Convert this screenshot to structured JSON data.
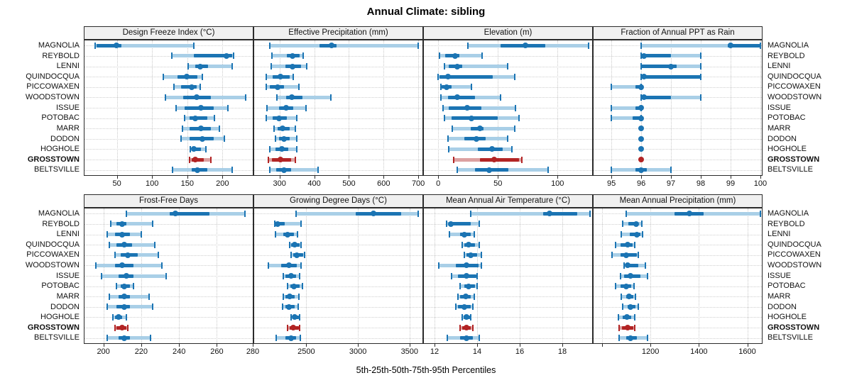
{
  "title": "Annual Climate: sibling",
  "footer_label": "5th-25th-50th-75th-95th Percentiles",
  "colors": {
    "series_main": "#1b74b3",
    "series_band": "#a9cfe7",
    "highlight_main": "#b22424",
    "highlight_band": "#dca1a1",
    "header_bg": "#f0f0f0",
    "panel_border": "#2b2b2b",
    "grid": "#c9c9c9",
    "text": "#111111"
  },
  "chart_data": {
    "type": "trellis-percentile-dotplot",
    "percentiles_shown": [
      5,
      25,
      50,
      75,
      95
    ],
    "legend_note": "thin light band = 5th-95th, thick bar = 25th-75th, dot = 50th",
    "categories": [
      "MAGNOLIA",
      "REYBOLD",
      "LENNI",
      "QUINDOCQUA",
      "PICCOWAXEN",
      "WOODSTOWN",
      "ISSUE",
      "POTOBAC",
      "MARR",
      "DODON",
      "HOGHOLE",
      "GROSSTOWN",
      "BELTSVILLE"
    ],
    "highlight_category": "GROSSTOWN",
    "panels": [
      {
        "title": "Design Freeze Index (°C)",
        "xlim": [
          4,
          243
        ],
        "ticks": [
          {
            "v": 50,
            "label": "50"
          },
          {
            "v": 100,
            "label": "100"
          },
          {
            "v": 150,
            "label": "150"
          },
          {
            "v": 200,
            "label": "200"
          }
        ],
        "series": [
          [
            19,
            21,
            49,
            56,
            159
          ],
          [
            128,
            159,
            206,
            214,
            216
          ],
          [
            151,
            161,
            168,
            179,
            214
          ],
          [
            116,
            136,
            149,
            164,
            171
          ],
          [
            131,
            141,
            156,
            163,
            168
          ],
          [
            119,
            144,
            163,
            184,
            233
          ],
          [
            134,
            146,
            169,
            188,
            208
          ],
          [
            146,
            153,
            161,
            178,
            189
          ],
          [
            143,
            153,
            169,
            184,
            196
          ],
          [
            141,
            153,
            171,
            188,
            203
          ],
          [
            154,
            156,
            159,
            169,
            176
          ],
          [
            153,
            156,
            161,
            173,
            184
          ],
          [
            129,
            156,
            164,
            178,
            214
          ]
        ]
      },
      {
        "title": "Effective Precipitation (mm)",
        "xlim": [
          227,
          712
        ],
        "ticks": [
          {
            "v": 300,
            "label": "300"
          },
          {
            "v": 400,
            "label": "400"
          },
          {
            "v": 500,
            "label": "500"
          },
          {
            "v": 600,
            "label": "600"
          },
          {
            "v": 700,
            "label": "700"
          }
        ],
        "series": [
          [
            273,
            415,
            450,
            465,
            700
          ],
          [
            278,
            322,
            337,
            357,
            368
          ],
          [
            276,
            318,
            337,
            363,
            378
          ],
          [
            262,
            281,
            302,
            329,
            339
          ],
          [
            261,
            272,
            295,
            312,
            355
          ],
          [
            292,
            319,
            336,
            367,
            448
          ],
          [
            264,
            299,
            319,
            339,
            377
          ],
          [
            262,
            281,
            299,
            322,
            350
          ],
          [
            285,
            295,
            309,
            329,
            346
          ],
          [
            288,
            299,
            312,
            329,
            350
          ],
          [
            271,
            288,
            306,
            326,
            350
          ],
          [
            268,
            278,
            302,
            333,
            346
          ],
          [
            271,
            290,
            312,
            333,
            411
          ]
        ]
      },
      {
        "title": "Elevation (m)",
        "xlim": [
          -12,
          129
        ],
        "ticks": [
          {
            "v": 0,
            "label": "0"
          },
          {
            "v": 50,
            "label": "50"
          },
          {
            "v": 100,
            "label": "100"
          }
        ],
        "series": [
          [
            25,
            52,
            73,
            90,
            126
          ],
          [
            1,
            6,
            14,
            18,
            37
          ],
          [
            5,
            9,
            16,
            20,
            58
          ],
          [
            0,
            1,
            8,
            46,
            64
          ],
          [
            2,
            3,
            7,
            11,
            28
          ],
          [
            2,
            8,
            16,
            31,
            52
          ],
          [
            4,
            9,
            24,
            36,
            65
          ],
          [
            5,
            11,
            28,
            50,
            68
          ],
          [
            12,
            27,
            35,
            38,
            64
          ],
          [
            8,
            22,
            32,
            40,
            58
          ],
          [
            9,
            33,
            45,
            54,
            62
          ],
          [
            13,
            35,
            47,
            68,
            70
          ],
          [
            16,
            31,
            43,
            59,
            92
          ]
        ]
      },
      {
        "title": "Fraction of Annual PPT as Rain",
        "xlim": [
          94.4,
          100.05
        ],
        "ticks": [
          {
            "v": 95,
            "label": "95"
          },
          {
            "v": 96,
            "label": "96"
          },
          {
            "v": 97,
            "label": "97"
          },
          {
            "v": 98,
            "label": "98"
          },
          {
            "v": 99,
            "label": "99"
          },
          {
            "v": 100,
            "label": "100"
          }
        ],
        "series": [
          [
            96,
            98.9,
            99,
            100,
            100
          ],
          [
            96,
            96,
            96.1,
            97,
            98
          ],
          [
            96,
            96,
            97,
            97.2,
            98
          ],
          [
            96,
            96,
            96.1,
            98,
            98
          ],
          [
            95,
            95.8,
            96,
            96,
            96
          ],
          [
            96,
            96,
            96.1,
            97,
            98
          ],
          [
            95,
            95.8,
            96,
            96,
            96
          ],
          [
            95,
            95.7,
            96,
            96,
            96
          ],
          [
            96,
            96,
            96,
            96,
            96
          ],
          [
            96,
            96,
            96,
            96,
            96
          ],
          [
            96,
            96,
            96,
            96,
            96
          ],
          [
            96,
            96,
            96,
            96,
            96
          ],
          [
            95,
            95.8,
            96,
            96.2,
            97
          ]
        ]
      },
      {
        "title": "Frost-Free Days",
        "xlim": [
          190,
          279
        ],
        "ticks": [
          {
            "v": 200,
            "label": "200"
          },
          {
            "v": 220,
            "label": "220"
          },
          {
            "v": 240,
            "label": "240"
          },
          {
            "v": 260,
            "label": "260"
          },
          {
            "v": 280,
            "label": "280"
          }
        ],
        "series": [
          [
            212,
            235,
            238,
            256,
            275
          ],
          [
            204,
            207,
            210,
            212,
            226
          ],
          [
            202,
            206,
            210,
            214,
            220
          ],
          [
            203,
            207,
            211,
            215,
            227
          ],
          [
            206,
            209,
            213,
            218,
            229
          ],
          [
            196,
            206,
            210,
            216,
            231
          ],
          [
            199,
            208,
            212,
            216,
            233
          ],
          [
            207,
            209,
            211,
            214,
            216
          ],
          [
            203,
            208,
            211,
            214,
            224
          ],
          [
            202,
            207,
            211,
            214,
            226
          ],
          [
            205,
            206,
            208,
            210,
            212
          ],
          [
            206,
            207,
            210,
            212,
            213
          ],
          [
            202,
            208,
            211,
            214,
            225
          ]
        ]
      },
      {
        "title": "Growing Degree Days (°C)",
        "xlim": [
          1995,
          3625
        ],
        "ticks": [
          {
            "v": 2500,
            "label": "2500"
          },
          {
            "v": 3000,
            "label": "3000"
          },
          {
            "v": 3500,
            "label": "3500"
          }
        ],
        "series": [
          [
            2400,
            2980,
            3150,
            3420,
            3585
          ],
          [
            2195,
            2205,
            2220,
            2290,
            2450
          ],
          [
            2200,
            2275,
            2320,
            2380,
            2415
          ],
          [
            2340,
            2355,
            2385,
            2435,
            2450
          ],
          [
            2355,
            2370,
            2405,
            2470,
            2480
          ],
          [
            2130,
            2255,
            2335,
            2410,
            2450
          ],
          [
            2275,
            2300,
            2350,
            2400,
            2435
          ],
          [
            2320,
            2345,
            2380,
            2435,
            2460
          ],
          [
            2275,
            2300,
            2340,
            2390,
            2425
          ],
          [
            2270,
            2295,
            2335,
            2390,
            2420
          ],
          [
            2350,
            2365,
            2390,
            2425,
            2435
          ],
          [
            2315,
            2340,
            2370,
            2425,
            2435
          ],
          [
            2210,
            2300,
            2350,
            2400,
            2440
          ]
        ]
      },
      {
        "title": "Mean Annual Air Temperature (°C)",
        "xlim": [
          11.5,
          19.4
        ],
        "ticks": [
          {
            "v": 12,
            "label": "12"
          },
          {
            "v": 14,
            "label": "14"
          },
          {
            "v": 16,
            "label": "16"
          },
          {
            "v": 18,
            "label": "18"
          }
        ],
        "series": [
          [
            13.7,
            17.1,
            17.4,
            18.7,
            19.3
          ],
          [
            12.55,
            12.65,
            12.75,
            13.7,
            14.1
          ],
          [
            12.7,
            13.2,
            13.4,
            13.7,
            13.85
          ],
          [
            13.3,
            13.4,
            13.6,
            13.9,
            14.1
          ],
          [
            13.4,
            13.5,
            13.7,
            14.0,
            14.2
          ],
          [
            12.2,
            13.0,
            13.5,
            14.05,
            14.2
          ],
          [
            12.8,
            13.1,
            13.5,
            13.95,
            14.0
          ],
          [
            13.2,
            13.4,
            13.6,
            13.9,
            14.0
          ],
          [
            13.1,
            13.2,
            13.45,
            13.7,
            13.85
          ],
          [
            13.0,
            13.1,
            13.4,
            13.7,
            13.8
          ],
          [
            13.3,
            13.35,
            13.5,
            13.65,
            13.7
          ],
          [
            13.2,
            13.3,
            13.5,
            13.7,
            13.8
          ],
          [
            12.6,
            13.2,
            13.5,
            13.8,
            14.1
          ]
        ]
      },
      {
        "title": "Mean Annual Precipitation (mm)",
        "xlim": [
          965,
          1660
        ],
        "ticks": [
          {
            "v": 1000,
            "label": ""
          },
          {
            "v": 1200,
            "label": "1200"
          },
          {
            "v": 1400,
            "label": "1400"
          },
          {
            "v": 1600,
            "label": "1600"
          }
        ],
        "series": [
          [
            1100,
            1300,
            1360,
            1420,
            1655
          ],
          [
            1085,
            1110,
            1140,
            1150,
            1165
          ],
          [
            1080,
            1115,
            1145,
            1160,
            1168
          ],
          [
            1055,
            1075,
            1105,
            1125,
            1135
          ],
          [
            1040,
            1075,
            1100,
            1145,
            1150
          ],
          [
            1090,
            1096,
            1107,
            1150,
            1180
          ],
          [
            1077,
            1090,
            1117,
            1158,
            1187
          ],
          [
            1057,
            1077,
            1100,
            1120,
            1132
          ],
          [
            1080,
            1100,
            1113,
            1129,
            1139
          ],
          [
            1085,
            1105,
            1118,
            1139,
            1149
          ],
          [
            1067,
            1086,
            1103,
            1120,
            1134
          ],
          [
            1071,
            1081,
            1105,
            1129,
            1134
          ],
          [
            1071,
            1100,
            1118,
            1144,
            1187
          ]
        ]
      }
    ]
  }
}
